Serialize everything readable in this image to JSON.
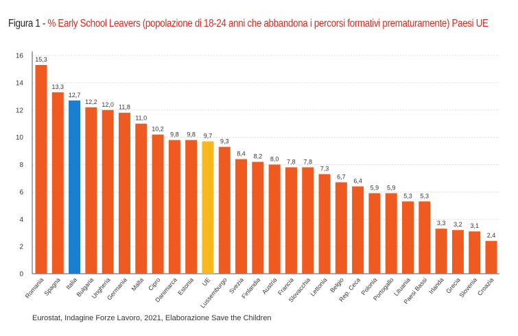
{
  "title": {
    "prefix": "Figura 1",
    "separator": " - ",
    "main": "% Early School Leavers (popolazione di 18-24 anni che abbandona i percorsi formativi prematuramente) Paesi UE"
  },
  "source": "Eurostat, Indagine Forze Lavoro, 2021, Elaborazione Save the Children",
  "colors": {
    "default_bar": "#ee5a1f",
    "italia_bar": "#1a7fd0",
    "ue_bar": "#f8b81c",
    "gridline": "#cfcfcf",
    "axis": "#555555",
    "title_accent": "#d9291c"
  },
  "chart_data": {
    "type": "bar",
    "categories": [
      "Romania",
      "Spagna",
      "Italia",
      "Bulgaria",
      "Ungheria",
      "Germania",
      "Malta",
      "Cipro",
      "Danimarca",
      "Estonia",
      "UE",
      "Lussemburgo",
      "Svezia",
      "Finlandia",
      "Austria",
      "Francia",
      "Slovacchia",
      "Lettonia",
      "Belgio",
      "Rep. Ceca",
      "Polonia",
      "Portogallo",
      "Lituania",
      "Paesi Bassi",
      "Irlanda",
      "Grecia",
      "Slovenia",
      "Croazia"
    ],
    "values": [
      15.3,
      13.3,
      12.7,
      12.2,
      12.0,
      11.8,
      11.0,
      10.2,
      9.8,
      9.8,
      9.7,
      9.3,
      8.4,
      8.2,
      8.0,
      7.8,
      7.8,
      7.3,
      6.7,
      6.4,
      5.9,
      5.9,
      5.3,
      5.3,
      3.3,
      3.2,
      3.1,
      2.4
    ],
    "value_labels": [
      "15,3",
      "13,3",
      "12,7",
      "12,2",
      "12,0",
      "11,8",
      "11,0",
      "10,2",
      "9,8",
      "9,8",
      "9,7",
      "9,3",
      "8,4",
      "8,2",
      "8,0",
      "7,8",
      "7,8",
      "7,3",
      "6,7",
      "6,4",
      "5,9",
      "5,9",
      "5,3",
      "5,3",
      "3,3",
      "3,2",
      "3,1",
      "2,4"
    ],
    "highlight": {
      "Italia": "italia_bar",
      "UE": "ue_bar"
    },
    "ylim": [
      0,
      16
    ],
    "yticks": [
      0,
      2,
      4,
      6,
      8,
      10,
      12,
      14,
      16
    ],
    "grid": true
  }
}
